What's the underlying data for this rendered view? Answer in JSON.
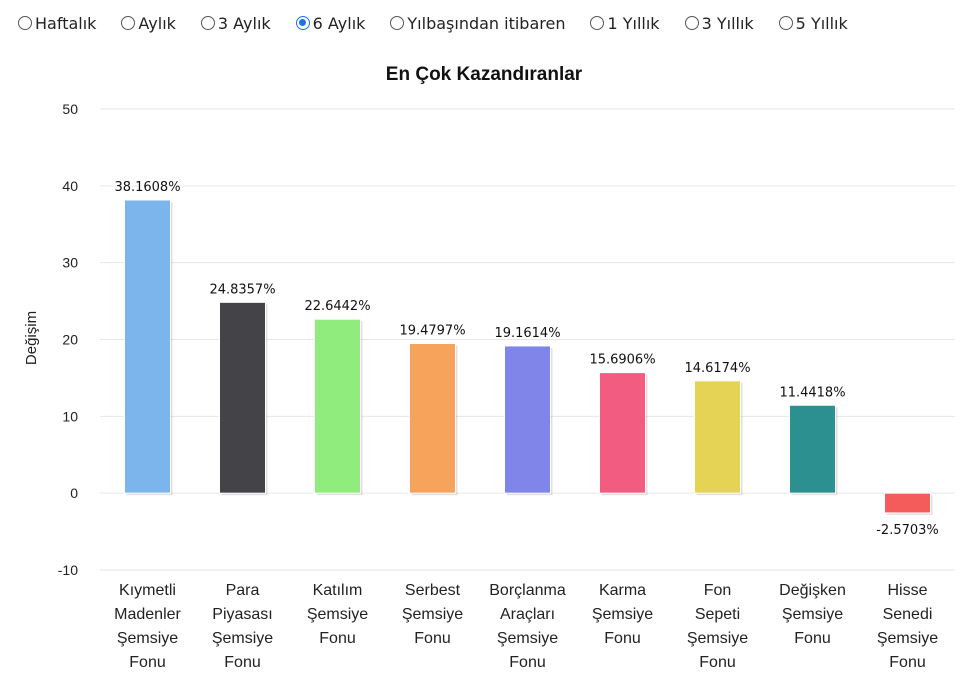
{
  "periods": [
    {
      "label": "Haftalık",
      "checked": false
    },
    {
      "label": "Aylık",
      "checked": false
    },
    {
      "label": "3 Aylık",
      "checked": false
    },
    {
      "label": "6 Aylık",
      "checked": true
    },
    {
      "label": "Yılbaşından itibaren",
      "checked": false
    },
    {
      "label": "1 Yıllık",
      "checked": false
    },
    {
      "label": "3 Yıllık",
      "checked": false
    },
    {
      "label": "5 Yıllık",
      "checked": false
    }
  ],
  "chart_data": {
    "type": "bar",
    "title": "En Çok Kazandıranlar",
    "xlabel": "",
    "ylabel": "Değişim",
    "ylim": [
      -10,
      50
    ],
    "yticks": [
      -10,
      0,
      10,
      20,
      30,
      40,
      50
    ],
    "grid": true,
    "categories": [
      [
        "Kıymetli",
        "Madenler",
        "Şemsiye",
        "Fonu"
      ],
      [
        "Para",
        "Piyasası",
        "Şemsiye",
        "Fonu"
      ],
      [
        "Katılım",
        "Şemsiye",
        "Fonu"
      ],
      [
        "Serbest",
        "Şemsiye",
        "Fonu"
      ],
      [
        "Borçlanma",
        "Araçları",
        "Şemsiye",
        "Fonu"
      ],
      [
        "Karma",
        "Şemsiye",
        "Fonu"
      ],
      [
        "Fon",
        "Sepeti",
        "Şemsiye",
        "Fonu"
      ],
      [
        "Değişken",
        "Şemsiye",
        "Fonu"
      ],
      [
        "Hisse",
        "Senedi",
        "Şemsiye",
        "Fonu"
      ]
    ],
    "values": [
      38.1608,
      24.8357,
      22.6442,
      19.4797,
      19.1614,
      15.6906,
      14.6174,
      11.4418,
      -2.5703
    ],
    "value_labels": [
      "38.1608%",
      "24.8357%",
      "22.6442%",
      "19.4797%",
      "19.1614%",
      "15.6906%",
      "14.6174%",
      "11.4418%",
      "-2.5703%"
    ],
    "colors": [
      "#7cb5ec",
      "#434348",
      "#90ed7d",
      "#f7a35c",
      "#8085e9",
      "#f15c80",
      "#e4d354",
      "#2b908f",
      "#f45b5b"
    ]
  }
}
